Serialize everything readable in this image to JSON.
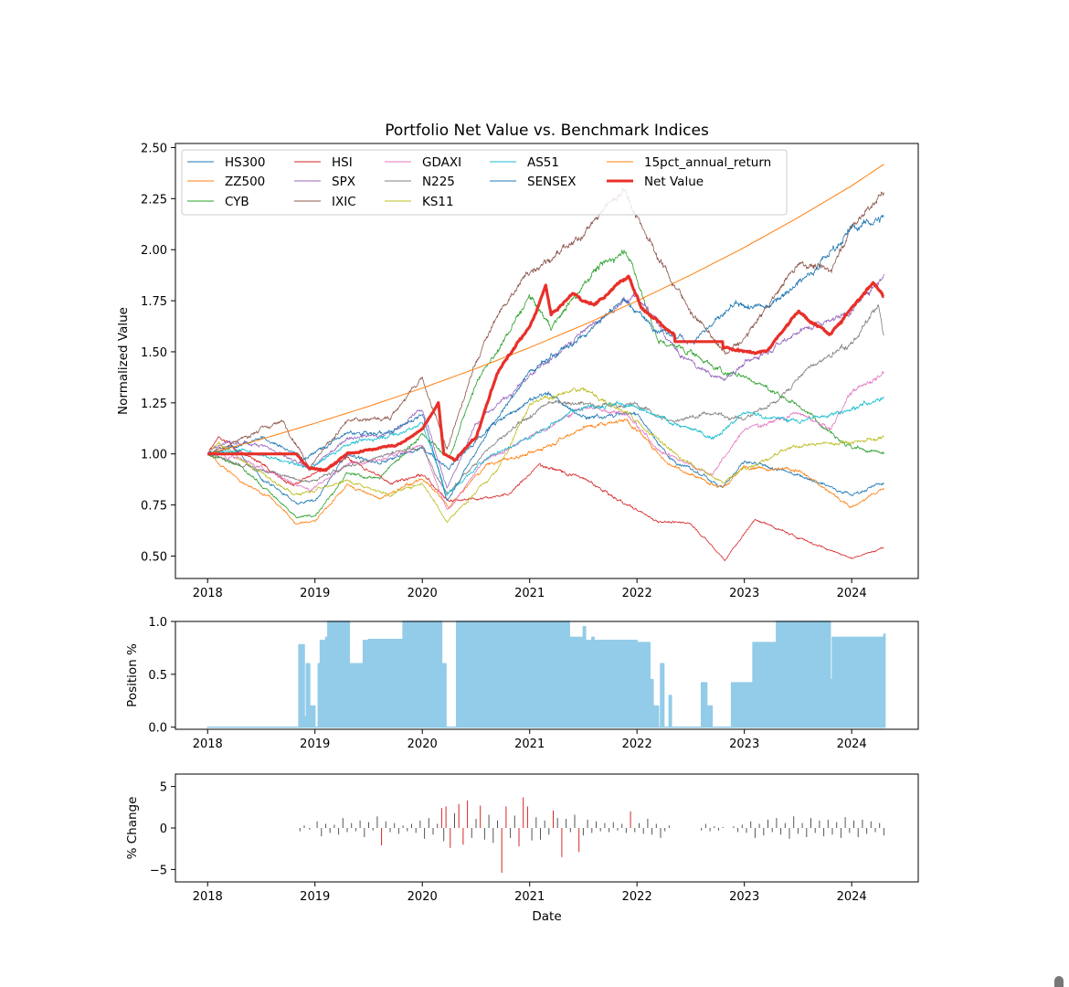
{
  "chart_data": [
    {
      "type": "line",
      "title": "Portfolio Net Value vs. Benchmark Indices",
      "xlabel": "",
      "ylabel": "Normalized Value",
      "xlim": [
        2017.7,
        2024.62
      ],
      "ylim": [
        0.39,
        2.52
      ],
      "x_ticks": [
        2018,
        2019,
        2020,
        2021,
        2022,
        2023,
        2024
      ],
      "x_tick_labels": [
        "2018",
        "2019",
        "2020",
        "2021",
        "2022",
        "2023",
        "2024"
      ],
      "y_ticks": [
        0.5,
        0.75,
        1.0,
        1.25,
        1.5,
        1.75,
        2.0,
        2.25,
        2.5
      ],
      "y_tick_labels": [
        "0.50",
        "0.75",
        "1.00",
        "1.25",
        "1.50",
        "1.75",
        "2.00",
        "2.25",
        "2.50"
      ],
      "legend_location": "top-left",
      "series": [
        {
          "name": "HS300",
          "color": "#1f77b4",
          "x": [
            2018.0,
            2018.25,
            2018.5,
            2018.83,
            2019.0,
            2019.3,
            2019.6,
            2020.0,
            2020.25,
            2020.6,
            2021.0,
            2021.15,
            2021.5,
            2022.0,
            2022.3,
            2022.8,
            2023.0,
            2023.5,
            2024.0,
            2024.3
          ],
          "values": [
            1.0,
            1.03,
            0.88,
            0.76,
            0.77,
            1.0,
            0.95,
            1.03,
            0.93,
            1.12,
            1.26,
            1.3,
            1.18,
            1.2,
            0.98,
            0.84,
            0.96,
            0.9,
            0.8,
            0.86
          ]
        },
        {
          "name": "ZZ500",
          "color": "#ff7f0e",
          "x": [
            2018.0,
            2018.3,
            2018.6,
            2018.83,
            2019.0,
            2019.3,
            2019.6,
            2020.0,
            2020.25,
            2020.6,
            2021.0,
            2021.5,
            2021.9,
            2022.3,
            2022.8,
            2023.0,
            2023.5,
            2024.0,
            2024.3
          ],
          "values": [
            1.0,
            0.87,
            0.78,
            0.66,
            0.67,
            0.85,
            0.78,
            0.88,
            0.74,
            0.95,
            1.0,
            1.13,
            1.17,
            0.95,
            0.83,
            0.94,
            0.92,
            0.74,
            0.83
          ]
        },
        {
          "name": "CYB",
          "color": "#2ca02c",
          "x": [
            2018.0,
            2018.3,
            2018.6,
            2018.83,
            2019.0,
            2019.3,
            2019.6,
            2020.0,
            2020.25,
            2020.5,
            2020.7,
            2021.0,
            2021.2,
            2021.6,
            2021.9,
            2022.2,
            2022.5,
            2022.8,
            2023.0,
            2023.5,
            2024.0,
            2024.3
          ],
          "values": [
            1.0,
            0.94,
            0.8,
            0.69,
            0.7,
            0.9,
            0.88,
            1.1,
            0.98,
            1.35,
            1.5,
            1.77,
            1.62,
            1.9,
            2.0,
            1.55,
            1.5,
            1.4,
            1.38,
            1.24,
            1.03,
            1.0
          ]
        },
        {
          "name": "HSI",
          "color": "#d62728",
          "x": [
            2018.0,
            2018.1,
            2018.8,
            2019.3,
            2019.7,
            2020.0,
            2020.25,
            2020.8,
            2021.1,
            2021.5,
            2021.9,
            2022.2,
            2022.5,
            2022.82,
            2023.1,
            2023.5,
            2024.0,
            2024.3
          ],
          "values": [
            1.0,
            1.08,
            0.85,
            0.98,
            0.86,
            0.9,
            0.77,
            0.8,
            0.95,
            0.88,
            0.75,
            0.67,
            0.66,
            0.48,
            0.68,
            0.59,
            0.49,
            0.54
          ]
        },
        {
          "name": "SPX",
          "color": "#9467bd",
          "x": [
            2018.0,
            2018.1,
            2018.5,
            2018.95,
            2019.3,
            2019.7,
            2020.0,
            2020.23,
            2020.5,
            2021.0,
            2021.5,
            2021.99,
            2022.4,
            2022.8,
            2023.0,
            2023.5,
            2024.0,
            2024.3
          ],
          "values": [
            1.0,
            1.05,
            1.05,
            0.92,
            1.08,
            1.1,
            1.22,
            0.83,
            1.15,
            1.38,
            1.6,
            1.78,
            1.48,
            1.36,
            1.44,
            1.6,
            1.7,
            1.88
          ]
        },
        {
          "name": "IXIC",
          "color": "#8c564b",
          "x": [
            2018.0,
            2018.5,
            2018.7,
            2018.95,
            2019.3,
            2019.7,
            2020.0,
            2020.23,
            2020.5,
            2020.7,
            2021.0,
            2021.4,
            2021.87,
            2022.2,
            2022.5,
            2022.82,
            2023.0,
            2023.5,
            2023.8,
            2024.0,
            2024.3
          ],
          "values": [
            1.0,
            1.12,
            1.16,
            0.94,
            1.16,
            1.18,
            1.37,
            1.02,
            1.45,
            1.68,
            1.9,
            2.02,
            2.3,
            1.96,
            1.7,
            1.49,
            1.56,
            1.94,
            1.9,
            2.11,
            2.28
          ]
        },
        {
          "name": "GDAXI",
          "color": "#e377c2",
          "x": [
            2018.0,
            2018.3,
            2018.95,
            2019.3,
            2019.8,
            2020.0,
            2020.23,
            2020.6,
            2021.0,
            2021.5,
            2021.9,
            2022.2,
            2022.7,
            2023.0,
            2023.5,
            2023.8,
            2024.0,
            2024.3
          ],
          "values": [
            1.0,
            0.98,
            0.82,
            0.95,
            1.0,
            1.04,
            0.72,
            0.98,
            1.08,
            1.23,
            1.2,
            1.02,
            0.9,
            1.12,
            1.2,
            1.12,
            1.3,
            1.4
          ]
        },
        {
          "name": "N225",
          "color": "#7f7f7f",
          "x": [
            2018.0,
            2018.3,
            2018.95,
            2019.3,
            2019.8,
            2020.0,
            2020.23,
            2020.6,
            2021.0,
            2021.2,
            2021.7,
            2022.0,
            2022.3,
            2022.7,
            2023.0,
            2023.3,
            2023.6,
            2024.0,
            2024.25,
            2024.3
          ],
          "values": [
            1.0,
            0.95,
            0.86,
            0.94,
            1.02,
            1.03,
            0.8,
            1.02,
            1.18,
            1.26,
            1.24,
            1.24,
            1.16,
            1.2,
            1.17,
            1.26,
            1.42,
            1.54,
            1.72,
            1.58
          ]
        },
        {
          "name": "KS11",
          "color": "#bcbd22",
          "x": [
            2018.0,
            2018.1,
            2018.8,
            2019.3,
            2019.7,
            2020.0,
            2020.23,
            2020.7,
            2021.0,
            2021.5,
            2021.9,
            2022.4,
            2022.8,
            2023.0,
            2023.5,
            2024.0,
            2024.3
          ],
          "values": [
            1.0,
            1.05,
            0.8,
            0.87,
            0.8,
            0.86,
            0.67,
            0.92,
            1.25,
            1.32,
            1.2,
            0.98,
            0.86,
            0.93,
            1.04,
            1.06,
            1.08
          ]
        },
        {
          "name": "AS51",
          "color": "#17becf",
          "x": [
            2018.0,
            2018.3,
            2018.95,
            2019.3,
            2019.8,
            2020.0,
            2020.23,
            2020.6,
            2021.0,
            2021.5,
            2021.9,
            2022.3,
            2022.7,
            2023.0,
            2023.5,
            2024.0,
            2024.3
          ],
          "values": [
            1.0,
            1.02,
            0.93,
            1.05,
            1.1,
            1.15,
            0.8,
            0.98,
            1.08,
            1.24,
            1.24,
            1.16,
            1.08,
            1.2,
            1.16,
            1.22,
            1.28
          ]
        },
        {
          "name": "SENSEX",
          "color": "#1f77b4",
          "x": [
            2018.0,
            2018.5,
            2018.9,
            2019.3,
            2019.7,
            2020.0,
            2020.23,
            2020.6,
            2021.0,
            2021.5,
            2021.87,
            2022.2,
            2022.5,
            2022.9,
            2023.2,
            2023.6,
            2024.0,
            2024.3
          ],
          "values": [
            1.0,
            1.08,
            0.98,
            1.1,
            1.1,
            1.2,
            0.77,
            1.1,
            1.4,
            1.58,
            1.76,
            1.6,
            1.55,
            1.72,
            1.72,
            1.88,
            2.1,
            2.16
          ]
        },
        {
          "name": "15pct_annual_return",
          "color": "#ff7f0e",
          "x": [
            2018.0,
            2018.5,
            2019.0,
            2019.5,
            2020.0,
            2020.5,
            2021.0,
            2021.5,
            2022.0,
            2022.5,
            2023.0,
            2023.5,
            2024.0,
            2024.3
          ],
          "values": [
            1.0,
            1.072,
            1.15,
            1.233,
            1.322,
            1.418,
            1.521,
            1.631,
            1.749,
            1.876,
            2.011,
            2.157,
            2.313,
            2.418
          ]
        },
        {
          "name": "Net Value",
          "color": "#e8302a",
          "x": [
            2018.0,
            2018.83,
            2018.95,
            2019.1,
            2019.3,
            2019.5,
            2019.8,
            2020.0,
            2020.15,
            2020.2,
            2020.3,
            2020.5,
            2020.7,
            2021.0,
            2021.15,
            2021.2,
            2021.4,
            2021.6,
            2021.8,
            2021.92,
            2022.05,
            2022.3,
            2022.6,
            2022.85,
            2023.0,
            2023.2,
            2023.5,
            2023.8,
            2024.0,
            2024.2,
            2024.3
          ],
          "values": [
            1.0,
            1.0,
            0.93,
            0.92,
            1.0,
            1.02,
            1.05,
            1.12,
            1.25,
            1.0,
            0.97,
            1.08,
            1.4,
            1.62,
            1.82,
            1.68,
            1.78,
            1.73,
            1.82,
            1.87,
            1.71,
            1.6,
            1.55,
            1.52,
            1.5,
            1.5,
            1.7,
            1.58,
            1.72,
            1.84,
            1.77
          ]
        }
      ]
    },
    {
      "type": "area",
      "title": "",
      "xlabel": "",
      "ylabel": "Position %",
      "xlim": [
        2017.7,
        2024.62
      ],
      "ylim": [
        -0.02,
        1.0
      ],
      "y_ticks": [
        0.0,
        0.5,
        1.0
      ],
      "y_tick_labels": [
        "0.0",
        "0.5",
        "1.0"
      ],
      "x_ticks": [
        2018,
        2019,
        2020,
        2021,
        2022,
        2023,
        2024
      ],
      "x_tick_labels": [
        "2018",
        "2019",
        "2020",
        "2021",
        "2022",
        "2023",
        "2024"
      ],
      "color": "#92cce8",
      "x": [
        2018.0,
        2018.83,
        2018.85,
        2018.9,
        2018.92,
        2018.95,
        2019.0,
        2019.03,
        2019.05,
        2019.1,
        2019.12,
        2019.3,
        2019.32,
        2019.45,
        2019.5,
        2019.8,
        2019.82,
        2020.15,
        2020.18,
        2020.22,
        2020.3,
        2020.32,
        2021.35,
        2021.37,
        2021.5,
        2021.52,
        2021.58,
        2021.6,
        2021.95,
        2022.0,
        2022.12,
        2022.15,
        2022.2,
        2022.22,
        2022.25,
        2022.3,
        2022.32,
        2022.55,
        2022.6,
        2022.65,
        2022.7,
        2022.85,
        2022.88,
        2023.05,
        2023.08,
        2023.25,
        2023.3,
        2023.75,
        2023.8,
        2023.82,
        2024.3,
        2024.31
      ],
      "values": [
        0.0,
        0.0,
        0.78,
        0.1,
        0.6,
        0.2,
        0.0,
        0.6,
        0.82,
        0.85,
        1.0,
        1.0,
        0.6,
        0.82,
        0.83,
        0.83,
        1.0,
        1.0,
        0.6,
        0.0,
        0.0,
        1.0,
        1.0,
        0.85,
        0.95,
        0.82,
        0.85,
        0.82,
        0.82,
        0.8,
        0.45,
        0.2,
        0.0,
        0.6,
        0.0,
        0.3,
        0.0,
        0.0,
        0.42,
        0.2,
        0.0,
        0.0,
        0.42,
        0.42,
        0.8,
        0.8,
        1.0,
        1.0,
        0.45,
        0.85,
        0.88,
        0.0
      ]
    },
    {
      "type": "bar",
      "title": "",
      "xlabel": "Date",
      "ylabel": "% Change",
      "xlim": [
        2017.7,
        2024.62
      ],
      "ylim": [
        -6.5,
        6.5
      ],
      "y_ticks": [
        -5,
        0,
        5
      ],
      "y_tick_labels": [
        "−5",
        "0",
        "5"
      ],
      "x_ticks": [
        2018,
        2019,
        2020,
        2021,
        2022,
        2023,
        2024
      ],
      "x_tick_labels": [
        "2018",
        "2019",
        "2020",
        "2021",
        "2022",
        "2023",
        "2024"
      ],
      "highlight_threshold": 2,
      "positive_color": "#555555",
      "highlight_color": "#d62728",
      "x": [
        2018.86,
        2018.9,
        2018.95,
        2019.02,
        2019.06,
        2019.1,
        2019.14,
        2019.18,
        2019.22,
        2019.26,
        2019.3,
        2019.34,
        2019.38,
        2019.42,
        2019.46,
        2019.5,
        2019.54,
        2019.58,
        2019.62,
        2019.66,
        2019.7,
        2019.74,
        2019.78,
        2019.82,
        2019.86,
        2019.9,
        2019.94,
        2019.98,
        2020.02,
        2020.06,
        2020.1,
        2020.14,
        2020.18,
        2020.2,
        2020.22,
        2020.26,
        2020.3,
        2020.34,
        2020.38,
        2020.42,
        2020.46,
        2020.5,
        2020.54,
        2020.58,
        2020.62,
        2020.66,
        2020.7,
        2020.74,
        2020.78,
        2020.82,
        2020.86,
        2020.9,
        2020.94,
        2020.98,
        2021.02,
        2021.06,
        2021.1,
        2021.14,
        2021.18,
        2021.22,
        2021.26,
        2021.3,
        2021.34,
        2021.38,
        2021.42,
        2021.46,
        2021.5,
        2021.54,
        2021.58,
        2021.62,
        2021.66,
        2021.7,
        2021.74,
        2021.78,
        2021.82,
        2021.86,
        2021.9,
        2021.94,
        2021.98,
        2022.02,
        2022.06,
        2022.1,
        2022.14,
        2022.18,
        2022.22,
        2022.26,
        2022.3,
        2022.6,
        2022.64,
        2022.68,
        2022.72,
        2022.76,
        2022.8,
        2022.9,
        2022.94,
        2022.98,
        2023.02,
        2023.06,
        2023.1,
        2023.14,
        2023.18,
        2023.22,
        2023.26,
        2023.3,
        2023.34,
        2023.38,
        2023.42,
        2023.46,
        2023.5,
        2023.54,
        2023.58,
        2023.62,
        2023.66,
        2023.7,
        2023.74,
        2023.78,
        2023.82,
        2023.86,
        2023.9,
        2023.94,
        2023.98,
        2024.02,
        2024.06,
        2024.1,
        2024.14,
        2024.18,
        2024.22,
        2024.26,
        2024.3
      ],
      "values": [
        -0.4,
        0.3,
        -0.2,
        0.8,
        -1.0,
        0.5,
        -0.6,
        0.4,
        -0.8,
        1.2,
        -0.5,
        0.6,
        -0.4,
        0.9,
        -1.1,
        0.7,
        -0.3,
        1.4,
        -2.1,
        0.8,
        -0.5,
        0.6,
        -0.7,
        0.3,
        -0.4,
        0.5,
        -0.6,
        0.9,
        -1.3,
        1.2,
        -0.8,
        0.5,
        2.4,
        -1.6,
        2.6,
        -2.4,
        1.8,
        2.9,
        -2.0,
        3.3,
        -1.2,
        1.1,
        2.7,
        -1.4,
        1.6,
        -1.8,
        0.9,
        -5.4,
        2.6,
        -1.2,
        1.5,
        -2.2,
        3.7,
        2.6,
        -1.5,
        1.3,
        -1.4,
        0.9,
        -0.8,
        2.1,
        1.2,
        -3.5,
        1.1,
        -0.5,
        1.6,
        -2.9,
        -0.9,
        1.0,
        -0.6,
        0.8,
        -0.4,
        0.6,
        -0.5,
        0.7,
        -0.3,
        0.5,
        -0.6,
        2.0,
        -0.5,
        0.6,
        -0.7,
        1.1,
        -0.8,
        0.5,
        -1.2,
        -0.4,
        0.3,
        -0.3,
        0.5,
        -0.4,
        0.2,
        -0.3,
        0.1,
        0.2,
        -0.5,
        0.4,
        -0.6,
        0.8,
        -1.2,
        0.5,
        -0.9,
        1.0,
        -0.5,
        1.2,
        -0.8,
        0.6,
        -1.3,
        1.4,
        -0.7,
        0.6,
        -1.1,
        1.2,
        -0.6,
        0.9,
        -1.0,
        1.0,
        -0.8,
        0.7,
        -1.2,
        1.3,
        -0.6,
        0.9,
        -1.1,
        1.0,
        -0.7,
        0.8,
        -0.5,
        0.6,
        -0.9
      ]
    }
  ],
  "legend": {
    "entries": [
      "HS300",
      "ZZ500",
      "CYB",
      "HSI",
      "SPX",
      "IXIC",
      "GDAXI",
      "N225",
      "KS11",
      "AS51",
      "SENSEX",
      "15pct_annual_return",
      "Net Value"
    ]
  }
}
